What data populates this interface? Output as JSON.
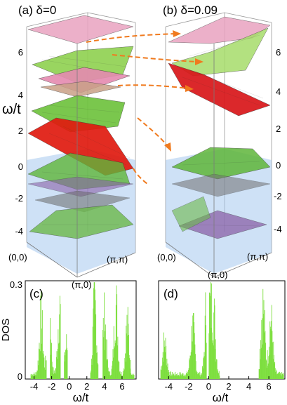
{
  "panel_a": {
    "label": "(a) δ=0",
    "y_axis_label": "ω/t",
    "y_ticks": [
      "6",
      "4",
      "2",
      "0",
      "-2",
      "-4"
    ],
    "k_labels": {
      "gamma": "(0,0)",
      "x": "(π,0)",
      "m": "(π,π)"
    },
    "layers_from_top": [
      {
        "color": "#e9a3c0"
      },
      {
        "color": "#8fd14f"
      },
      {
        "color": "#e58ab0"
      },
      {
        "color": "#c9a087"
      },
      {
        "color": "#6cc23a"
      },
      {
        "color": "#e01b10"
      },
      {
        "color": "#5fb63a"
      },
      {
        "color": "#8a62a8"
      },
      {
        "color": "#6a6a6a"
      },
      {
        "color": "#6cb84a"
      }
    ],
    "shade_color": "#9ec4ee"
  },
  "panel_b": {
    "label": "(b) δ=0.09",
    "y_ticks": [
      "6",
      "4",
      "2",
      "0",
      "-2",
      "-4"
    ],
    "k_labels": {
      "gamma": "(0,0)",
      "x": "(π,0)",
      "m": "(π,π)"
    },
    "layers_from_top": [
      {
        "color": "#e9a3c0"
      },
      {
        "color": "#a6dc6a"
      },
      {
        "color": "#d8161a"
      },
      {
        "color": "#5fb63a"
      },
      {
        "color": "#707070"
      },
      {
        "color": "#8a62a8"
      },
      {
        "color": "#6cb84a"
      }
    ],
    "shade_color": "#9ec4ee",
    "arrow_color": "#f07a1e"
  },
  "panel_c": {
    "label": "(c)",
    "ylabel": "DOS",
    "xlabel": "ω/t",
    "yticks": [
      "0.3",
      "0"
    ],
    "xticks": [
      "-4",
      "-2",
      "0",
      "2",
      "4",
      "6"
    ]
  },
  "panel_d": {
    "label": "(d)",
    "xlabel": "ω/t",
    "xticks": [
      "-4",
      "-2",
      "0",
      "2",
      "4",
      "6"
    ]
  },
  "chart_data": [
    {
      "type": "bar",
      "title": "(c)",
      "xlabel": "ω/t",
      "ylabel": "DOS",
      "xlim": [
        -5,
        7.6
      ],
      "ylim": [
        0,
        0.3
      ],
      "bands": [
        [
          -4.4,
          -2.6
        ],
        [
          -2.2,
          -1.0
        ],
        [
          -0.6,
          -0.2
        ],
        [
          2.4,
          3.3
        ],
        [
          3.8,
          4.8
        ],
        [
          4.8,
          6.4
        ],
        [
          6.4,
          7.4
        ]
      ],
      "peaks": [
        {
          "x": -3.2,
          "y": 0.23
        },
        {
          "x": -2.3,
          "y": 0.29
        },
        {
          "x": -1.1,
          "y": 0.28
        },
        {
          "x": -0.3,
          "y": 0.12
        },
        {
          "x": 2.9,
          "y": 0.29
        },
        {
          "x": 4.0,
          "y": 0.23
        },
        {
          "x": 5.3,
          "y": 0.29
        },
        {
          "x": 6.6,
          "y": 0.2
        }
      ],
      "color": "#7ddf3f"
    },
    {
      "type": "bar",
      "title": "(d)",
      "xlabel": "ω/t",
      "xlim": [
        -5,
        7.6
      ],
      "ylim": [
        0,
        0.3
      ],
      "bands": [
        [
          -4.8,
          -0.2
        ],
        [
          0.0,
          1.1
        ],
        [
          5.0,
          6.4
        ],
        [
          6.4,
          7.5
        ]
      ],
      "peaks": [
        {
          "x": -4.4,
          "y": 0.13
        },
        {
          "x": -1.6,
          "y": 0.19
        },
        {
          "x": -0.15,
          "y": 0.27
        },
        {
          "x": 0.05,
          "y": 0.29
        },
        {
          "x": 0.5,
          "y": 0.23
        },
        {
          "x": 5.4,
          "y": 0.28
        },
        {
          "x": 6.2,
          "y": 0.22
        }
      ],
      "color": "#7ddf3f"
    }
  ]
}
